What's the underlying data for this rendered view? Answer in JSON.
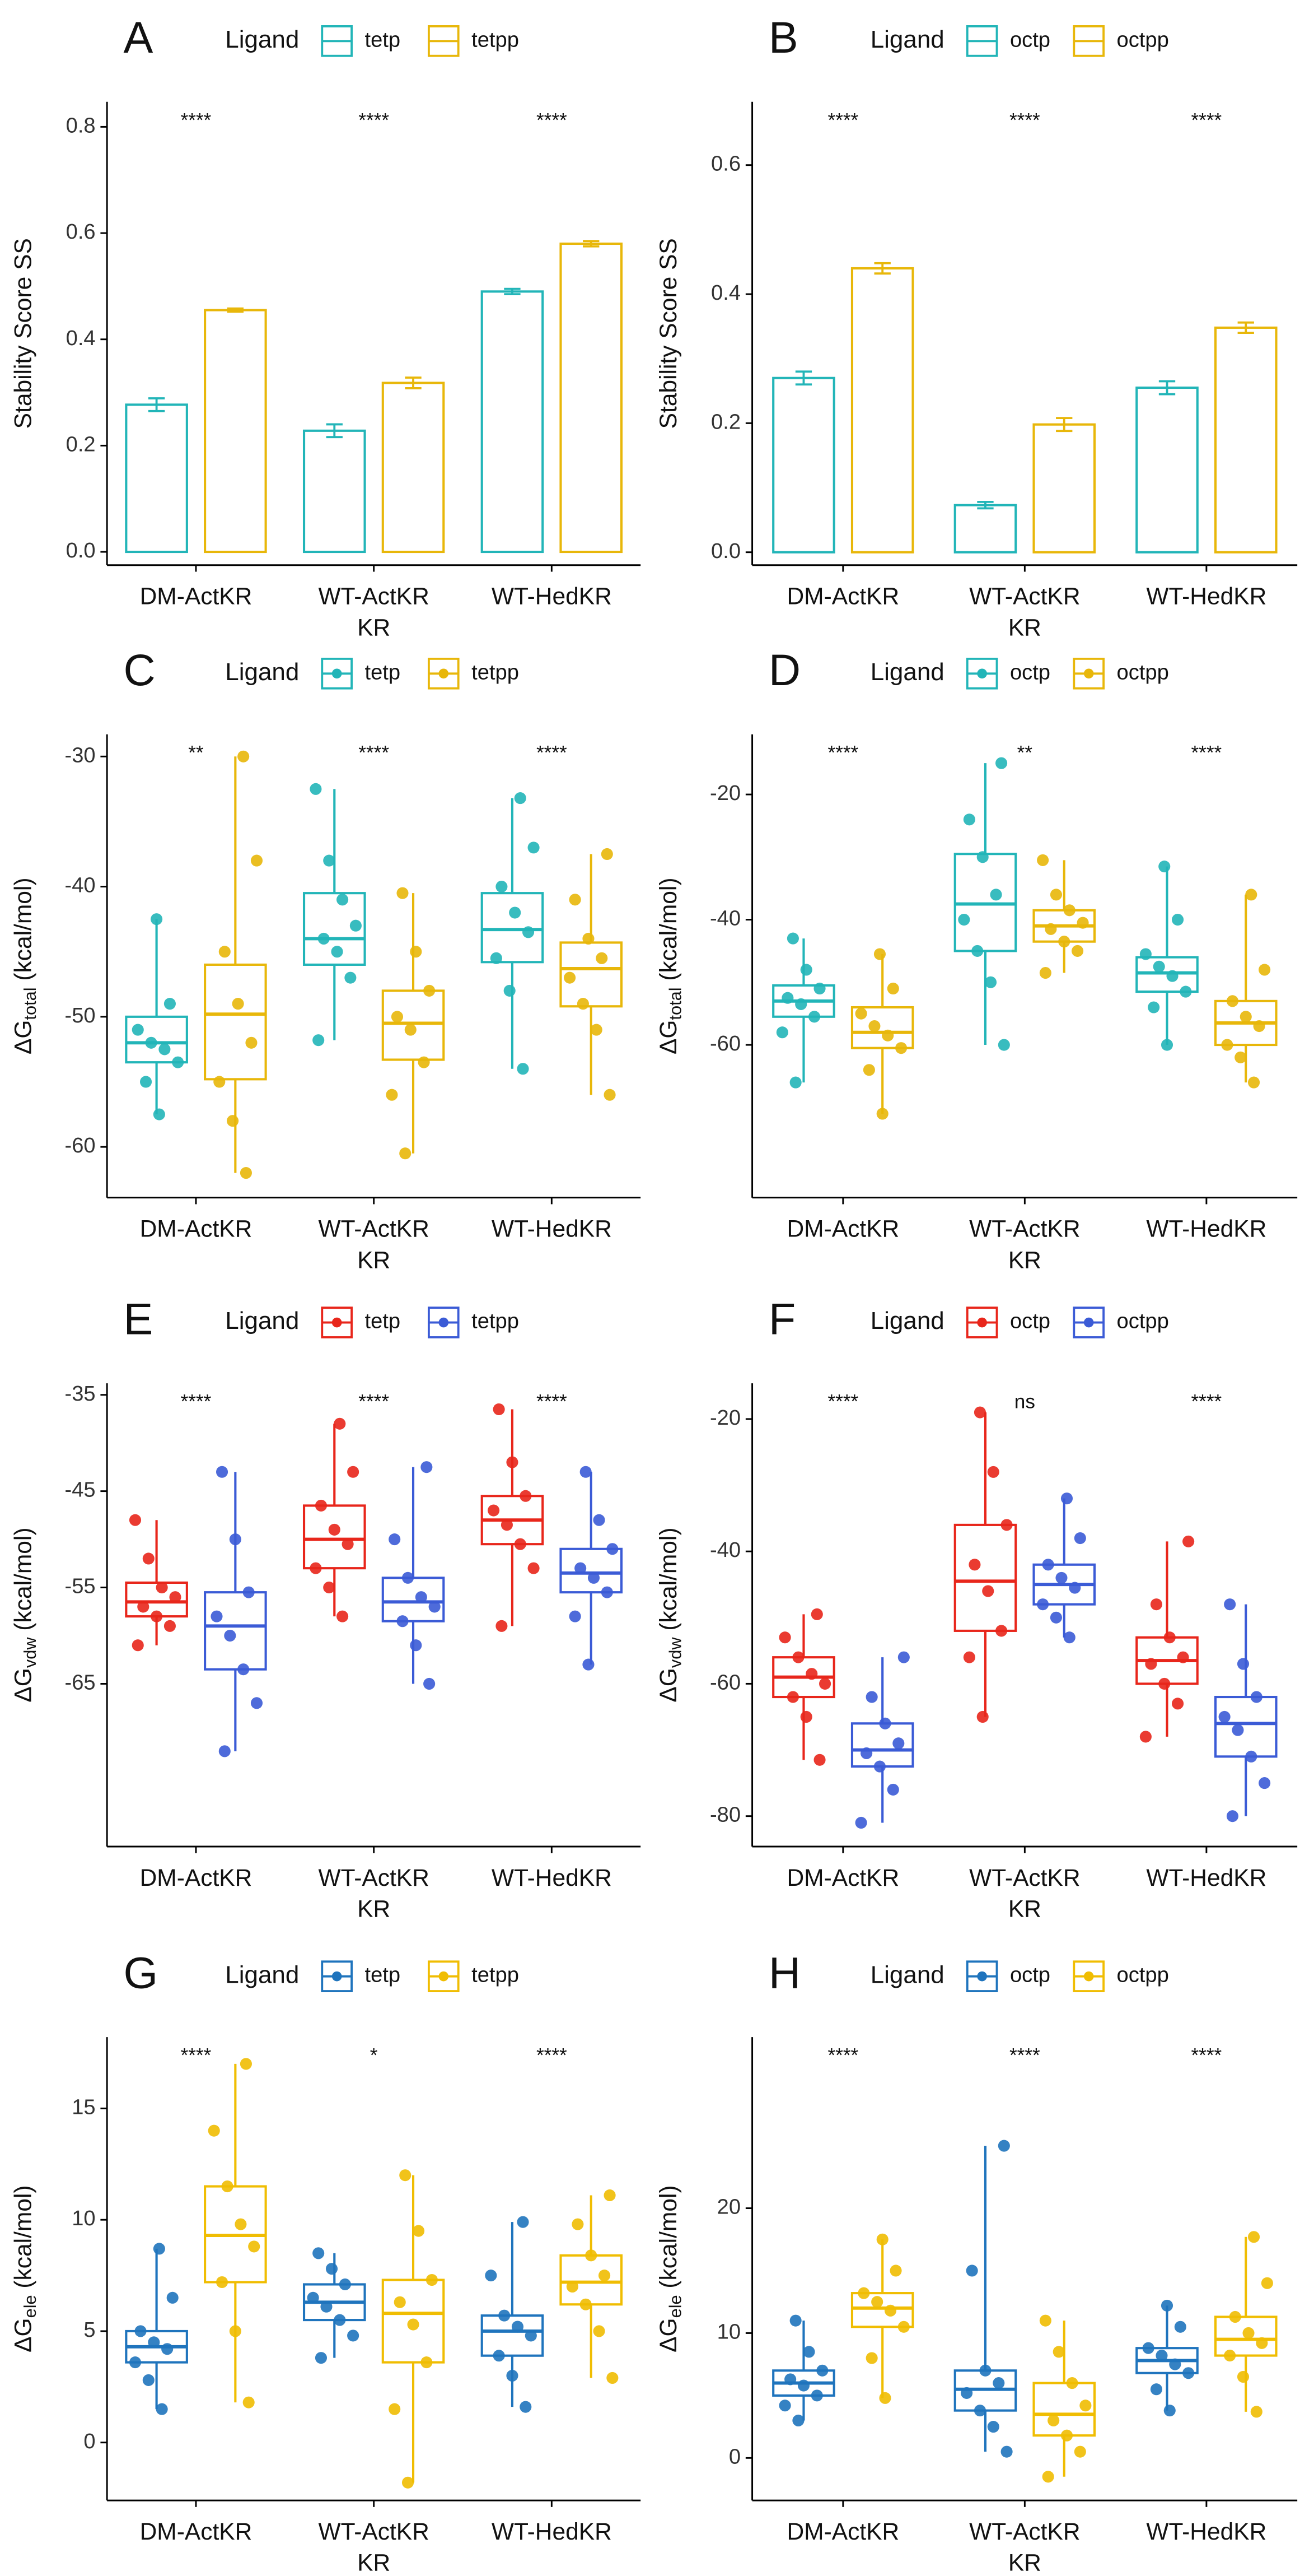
{
  "chart_data": [
    {
      "type": "bar",
      "label": "A",
      "legend_title": "Ligand",
      "ylabel": "Stability Score SS",
      "xlabel": "KR",
      "categories": [
        "DM-ActKR",
        "WT-ActKR",
        "WT-HedKR"
      ],
      "series": [
        {
          "name": "tetp",
          "color": "#22b5b8",
          "values": [
            0.277,
            0.228,
            0.49
          ],
          "errors": [
            0.012,
            0.012,
            0.005
          ]
        },
        {
          "name": "tetpp",
          "color": "#e8b70a",
          "values": [
            0.455,
            0.318,
            0.58
          ],
          "errors": [
            0.003,
            0.01,
            0.005
          ]
        }
      ],
      "ylim": [
        -0.025,
        0.847
      ],
      "yticks": [
        {
          "value": 0,
          "label": "0.0"
        },
        0.2,
        0.4,
        0.6,
        0.8
      ],
      "annotations": [
        "****",
        "****",
        "****"
      ]
    },
    {
      "type": "bar",
      "label": "B",
      "legend_title": "Ligand",
      "ylabel": "Stability Score SS",
      "xlabel": "KR",
      "categories": [
        "DM-ActKR",
        "WT-ActKR",
        "WT-HedKR"
      ],
      "series": [
        {
          "name": "octp",
          "color": "#22b5b8",
          "values": [
            0.27,
            0.073,
            0.255
          ],
          "errors": [
            0.01,
            0.005,
            0.01
          ]
        },
        {
          "name": "octpp",
          "color": "#e8b70a",
          "values": [
            0.44,
            0.198,
            0.348
          ],
          "errors": [
            0.008,
            0.01,
            0.008
          ]
        }
      ],
      "ylim": [
        -0.02,
        0.698
      ],
      "yticks": [
        {
          "value": 0,
          "label": "0.0"
        },
        0.2,
        0.4,
        0.6
      ],
      "annotations": [
        "****",
        "****",
        "****"
      ]
    },
    {
      "type": "box",
      "label": "C",
      "legend_title": "Ligand",
      "ylabel": "ΔG",
      "ylabel_sub": "total",
      "ylabel_unit": "(kcal/mol)",
      "xlabel": "KR",
      "categories": [
        "DM-ActKR",
        "WT-ActKR",
        "WT-HedKR"
      ],
      "series": [
        {
          "name": "tetp",
          "color": "#22b5b8",
          "boxes": [
            [
              -57.5,
              -53.5,
              -52,
              -50,
              -42.5
            ],
            [
              -51.8,
              -46,
              -44,
              -40.5,
              -32.5
            ],
            [
              -54,
              -45.8,
              -43.3,
              -40.5,
              -33.2
            ]
          ],
          "points": [
            [
              -57.5,
              -55,
              -53.5,
              -52.5,
              -52,
              -51,
              -49,
              -42.5
            ],
            [
              -51.8,
              -47,
              -45,
              -44,
              -43,
              -41,
              -38,
              -32.5
            ],
            [
              -54,
              -48,
              -45.5,
              -43.5,
              -42,
              -40,
              -37,
              -33.2
            ]
          ]
        },
        {
          "name": "tetpp",
          "color": "#e8b70a",
          "boxes": [
            [
              -62,
              -54.8,
              -49.8,
              -46,
              -30
            ],
            [
              -60.5,
              -53.3,
              -50.5,
              -48,
              -40.5
            ],
            [
              -56,
              -49.2,
              -46.3,
              -44.3,
              -37.5
            ]
          ],
          "points": [
            [
              -62,
              -58,
              -55,
              -52,
              -49,
              -45,
              -38,
              -30
            ],
            [
              -60.5,
              -56,
              -53.5,
              -51,
              -50,
              -48,
              -45,
              -40.5
            ],
            [
              -56,
              -51,
              -49,
              -47,
              -45.5,
              -44,
              -41,
              -37.5
            ]
          ]
        }
      ],
      "ylim": [
        -63.9,
        -28.3
      ],
      "yticks": [
        -60,
        -50,
        -40,
        -30
      ],
      "annotations": [
        "**",
        "****",
        "****"
      ]
    },
    {
      "type": "box",
      "label": "D",
      "legend_title": "Ligand",
      "ylabel": "ΔG",
      "ylabel_sub": "total",
      "ylabel_unit": "(kcal/mol)",
      "xlabel": "KR",
      "categories": [
        "DM-ActKR",
        "WT-ActKR",
        "WT-HedKR"
      ],
      "series": [
        {
          "name": "octp",
          "color": "#22b5b8",
          "boxes": [
            [
              -66,
              -55.5,
              -53,
              -50.5,
              -43
            ],
            [
              -60,
              -45,
              -37.5,
              -29.5,
              -15
            ],
            [
              -60,
              -51.5,
              -48.5,
              -46,
              -31.5
            ]
          ],
          "points": [
            [
              -66,
              -58,
              -55.5,
              -53.5,
              -52.5,
              -51,
              -48,
              -43
            ],
            [
              -60,
              -50,
              -45,
              -40,
              -36,
              -30,
              -24,
              -15
            ],
            [
              -60,
              -54,
              -51.5,
              -49,
              -47.5,
              -45.5,
              -40,
              -31.5
            ]
          ]
        },
        {
          "name": "octpp",
          "color": "#e8b70a",
          "boxes": [
            [
              -71,
              -60.5,
              -58,
              -54,
              -45.5
            ],
            [
              -48.5,
              -43.5,
              -41,
              -38.5,
              -30.5
            ],
            [
              -66,
              -60,
              -56.5,
              -53,
              -36
            ]
          ],
          "points": [
            [
              -71,
              -64,
              -60.5,
              -58.5,
              -57,
              -55,
              -51,
              -45.5
            ],
            [
              -48.5,
              -45,
              -43.5,
              -41.5,
              -40.5,
              -38.5,
              -36,
              -30.5
            ],
            [
              -66,
              -62,
              -60,
              -57,
              -55.5,
              -53,
              -48,
              -36
            ]
          ]
        }
      ],
      "ylim": [
        -84.4,
        -10.4
      ],
      "yticks": [
        -60,
        -40,
        -20
      ],
      "annotations": [
        "****",
        "**",
        "****"
      ]
    },
    {
      "type": "box",
      "label": "E",
      "legend_title": "Ligand",
      "ylabel": "ΔG",
      "ylabel_sub": "vdw",
      "ylabel_unit": "(kcal/mol)",
      "xlabel": "KR",
      "categories": [
        "DM-ActKR",
        "WT-ActKR",
        "WT-HedKR"
      ],
      "series": [
        {
          "name": "tetp",
          "color": "#e8261b",
          "boxes": [
            [
              -61,
              -58,
              -56.5,
              -54.5,
              -48
            ],
            [
              -58,
              -53,
              -50,
              -46.5,
              -38
            ],
            [
              -59,
              -50.5,
              -48,
              -45.5,
              -36.5
            ]
          ],
          "points": [
            [
              -61,
              -59,
              -58,
              -57,
              -56,
              -55,
              -52,
              -48
            ],
            [
              -58,
              -55,
              -53,
              -50.5,
              -49,
              -46.5,
              -43,
              -38
            ],
            [
              -59,
              -53,
              -50.5,
              -48.5,
              -47,
              -45.5,
              -42,
              -36.5
            ]
          ]
        },
        {
          "name": "tetpp",
          "color": "#3b5bd6",
          "boxes": [
            [
              -72,
              -63.5,
              -59,
              -55.5,
              -43
            ],
            [
              -65,
              -58.5,
              -56.5,
              -54,
              -42.5
            ],
            [
              -63,
              -55.5,
              -53.5,
              -51,
              -43
            ]
          ],
          "points": [
            [
              -72,
              -67,
              -63.5,
              -60,
              -58,
              -55.5,
              -50,
              -43
            ],
            [
              -65,
              -61,
              -58.5,
              -57,
              -56,
              -54,
              -50,
              -42.5
            ],
            [
              -63,
              -58,
              -55.5,
              -54,
              -53,
              -51,
              -48,
              -43
            ]
          ]
        }
      ],
      "ylim": [
        -81.9,
        -33.8
      ],
      "yticks": [
        -65,
        -55,
        -45,
        -35
      ],
      "annotations": [
        "****",
        "****",
        "****"
      ]
    },
    {
      "type": "box",
      "label": "F",
      "legend_title": "Ligand",
      "ylabel": "ΔG",
      "ylabel_sub": "vdw",
      "ylabel_unit": "(kcal/mol)",
      "xlabel": "KR",
      "categories": [
        "DM-ActKR",
        "WT-ActKR",
        "WT-HedKR"
      ],
      "series": [
        {
          "name": "octp",
          "color": "#e8261b",
          "boxes": [
            [
              -71.5,
              -62,
              -59,
              -56,
              -49.5
            ],
            [
              -65,
              -52,
              -44.5,
              -36,
              -19
            ],
            [
              -68,
              -60,
              -56.5,
              -53,
              -38.5
            ]
          ],
          "points": [
            [
              -71.5,
              -65,
              -62,
              -60,
              -58.5,
              -56,
              -53,
              -49.5
            ],
            [
              -65,
              -56,
              -52,
              -46,
              -42,
              -36,
              -28,
              -19
            ],
            [
              -68,
              -63,
              -60,
              -57,
              -56,
              -53,
              -48,
              -38.5
            ]
          ]
        },
        {
          "name": "octpp",
          "color": "#3b5bd6",
          "boxes": [
            [
              -81,
              -72.5,
              -70,
              -66,
              -56
            ],
            [
              -53,
              -48,
              -45,
              -42,
              -32
            ],
            [
              -80,
              -71,
              -66,
              -62,
              -48
            ]
          ],
          "points": [
            [
              -81,
              -76,
              -72.5,
              -70.5,
              -69,
              -66,
              -62,
              -56
            ],
            [
              -53,
              -50,
              -48,
              -45.5,
              -44,
              -42,
              -38,
              -32
            ],
            [
              -80,
              -75,
              -71,
              -67,
              -65,
              -62,
              -57,
              -48
            ]
          ]
        }
      ],
      "ylim": [
        -84.6,
        -14.6
      ],
      "yticks": [
        -80,
        -60,
        -40,
        -20
      ],
      "annotations": [
        "****",
        "ns",
        "****"
      ]
    },
    {
      "type": "box",
      "label": "G",
      "legend_title": "Ligand",
      "ylabel": "ΔG",
      "ylabel_sub": "ele",
      "ylabel_unit": "(kcal/mol)",
      "xlabel": "KR",
      "categories": [
        "DM-ActKR",
        "WT-ActKR",
        "WT-HedKR"
      ],
      "series": [
        {
          "name": "tetp",
          "color": "#1f74bd",
          "boxes": [
            [
              1.5,
              3.6,
              4.3,
              5,
              8.7
            ],
            [
              3.8,
              5.5,
              6.3,
              7.1,
              8.5
            ],
            [
              1.6,
              3.9,
              5,
              5.7,
              9.9
            ]
          ],
          "points": [
            [
              1.5,
              2.8,
              3.6,
              4.2,
              4.5,
              5,
              6.5,
              8.7
            ],
            [
              3.8,
              4.8,
              5.5,
              6.1,
              6.5,
              7.1,
              7.8,
              8.5
            ],
            [
              1.6,
              3,
              3.9,
              4.8,
              5.2,
              5.7,
              7.5,
              9.9
            ]
          ]
        },
        {
          "name": "tetpp",
          "color": "#f0bd02",
          "boxes": [
            [
              1.8,
              7.2,
              9.3,
              11.5,
              17
            ],
            [
              -1.8,
              3.6,
              5.8,
              7.3,
              12
            ],
            [
              2.9,
              6.2,
              7.2,
              8.4,
              11.1
            ]
          ],
          "points": [
            [
              1.8,
              5,
              7.2,
              8.8,
              9.8,
              11.5,
              14,
              17
            ],
            [
              -1.8,
              1.5,
              3.6,
              5.3,
              6.3,
              7.3,
              9.5,
              12
            ],
            [
              2.9,
              5,
              6.2,
              7,
              7.5,
              8.4,
              9.8,
              11.1
            ]
          ]
        }
      ],
      "ylim": [
        -2.6,
        18.2
      ],
      "yticks": [
        0,
        5,
        10,
        15
      ],
      "annotations": [
        "****",
        "*",
        "****"
      ]
    },
    {
      "type": "box",
      "label": "H",
      "legend_title": "Ligand",
      "ylabel": "ΔG",
      "ylabel_sub": "ele",
      "ylabel_unit": "(kcal/mol)",
      "xlabel": "KR",
      "categories": [
        "DM-ActKR",
        "WT-ActKR",
        "WT-HedKR"
      ],
      "series": [
        {
          "name": "octp",
          "color": "#1f74bd",
          "boxes": [
            [
              3,
              5,
              6,
              7,
              11
            ],
            [
              0.5,
              3.8,
              5.5,
              7,
              25
            ],
            [
              3.8,
              6.8,
              7.8,
              8.8,
              12.2
            ]
          ],
          "points": [
            [
              3,
              4.2,
              5,
              5.8,
              6.3,
              7,
              8.5,
              11
            ],
            [
              0.5,
              2.5,
              3.8,
              5.2,
              6,
              7,
              15,
              25
            ],
            [
              3.8,
              5.5,
              6.8,
              7.5,
              8.2,
              8.8,
              10.5,
              12.2
            ]
          ]
        },
        {
          "name": "octpp",
          "color": "#f0bd02",
          "boxes": [
            [
              4.8,
              10.5,
              12,
              13.2,
              17.5
            ],
            [
              -1.5,
              1.8,
              3.5,
              6,
              11
            ],
            [
              3.7,
              8.2,
              9.5,
              11.3,
              17.7
            ]
          ],
          "points": [
            [
              4.8,
              8,
              10.5,
              11.8,
              12.5,
              13.2,
              15,
              17.5
            ],
            [
              -1.5,
              0.5,
              1.8,
              3,
              4.2,
              6,
              8.5,
              11
            ],
            [
              3.7,
              6.5,
              8.2,
              9.2,
              10,
              11.3,
              14,
              17.7
            ]
          ]
        }
      ],
      "ylim": [
        -3.4,
        33.7
      ],
      "yticks": [
        0,
        10,
        20
      ],
      "annotations": [
        "****",
        "****",
        "****"
      ]
    }
  ]
}
